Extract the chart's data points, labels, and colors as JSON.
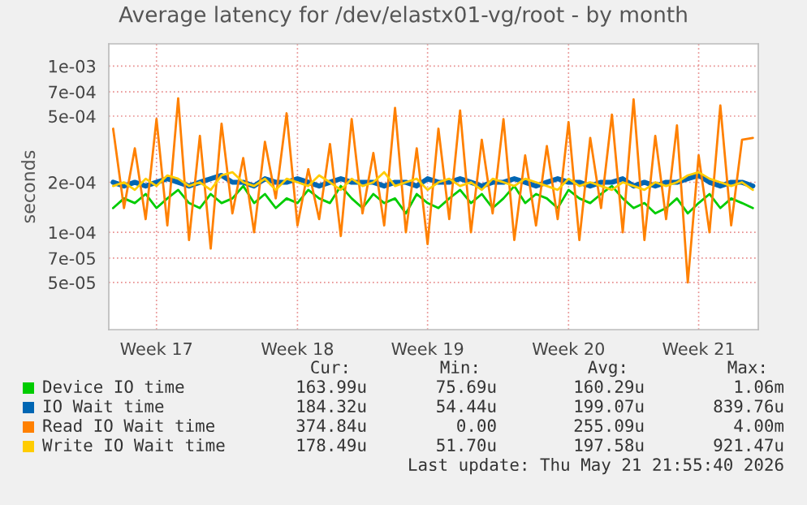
{
  "chart_data": {
    "type": "line",
    "title": "Average latency for /dev/elastx01-vg/root - by month",
    "ylabel": "seconds",
    "log": "y",
    "grid": true,
    "legend": "bottom",
    "ylim": [
      2.6e-05,
      0.00136
    ],
    "yticks": [
      {
        "value": 5e-05,
        "label": "5e-05"
      },
      {
        "value": 7e-05,
        "label": "7e-05"
      },
      {
        "value": 0.0001,
        "label": "1e-04"
      },
      {
        "value": 0.0002,
        "label": "2e-04"
      },
      {
        "value": 0.0005,
        "label": "5e-04"
      },
      {
        "value": 0.0007,
        "label": "7e-04"
      },
      {
        "value": 0.001,
        "label": "1e-03"
      }
    ],
    "categories": [
      null,
      null,
      null,
      null,
      "Week 17",
      null,
      null,
      null,
      null,
      null,
      null,
      null,
      null,
      null,
      null,
      null,
      null,
      "Week 18",
      null,
      null,
      null,
      null,
      null,
      null,
      null,
      null,
      null,
      null,
      null,
      "Week 19",
      null,
      null,
      null,
      null,
      null,
      null,
      null,
      null,
      null,
      null,
      null,
      null,
      "Week 20",
      null,
      null,
      null,
      null,
      null,
      null,
      null,
      null,
      null,
      null,
      null,
      "Week 21",
      null,
      null,
      null,
      null,
      null
    ],
    "series": [
      {
        "name": "Device IO time",
        "color": "#00cc00",
        "values": [
          0.00014,
          0.00016,
          0.00015,
          0.00017,
          0.00014,
          0.00016,
          0.00018,
          0.00015,
          0.00014,
          0.00017,
          0.00015,
          0.00016,
          0.00019,
          0.00015,
          0.00017,
          0.00014,
          0.00016,
          0.00015,
          0.00018,
          0.00016,
          0.00015,
          0.00019,
          0.00016,
          0.00014,
          0.00017,
          0.00015,
          0.00016,
          0.00013,
          0.00017,
          0.00015,
          0.00014,
          0.00016,
          0.00018,
          0.00015,
          0.00017,
          0.00014,
          0.00016,
          0.00019,
          0.00015,
          0.00017,
          0.00016,
          0.00014,
          0.00018,
          0.00016,
          0.00015,
          0.00017,
          0.00019,
          0.00016,
          0.00014,
          0.00015,
          0.00013,
          0.00014,
          0.00016,
          0.00013,
          0.00015,
          0.00017,
          0.00014,
          0.00016,
          0.00015,
          0.00014
        ]
      },
      {
        "name": "IO Wait time",
        "color": "#0066b3",
        "values": [
          0.0002,
          0.00019,
          0.0002,
          0.00019,
          0.0002,
          0.00021,
          0.0002,
          0.00019,
          0.0002,
          0.00021,
          0.00022,
          0.0002,
          0.0002,
          0.00019,
          0.00021,
          0.0002,
          0.0002,
          0.00021,
          0.0002,
          0.00019,
          0.0002,
          0.00021,
          0.0002,
          0.0002,
          0.0002,
          0.00019,
          0.0002,
          0.0002,
          0.00019,
          0.00021,
          0.0002,
          0.0002,
          0.00021,
          0.0002,
          0.00019,
          0.0002,
          0.0002,
          0.00021,
          0.0002,
          0.00019,
          0.0002,
          0.00021,
          0.0002,
          0.0002,
          0.00019,
          0.0002,
          0.0002,
          0.00021,
          0.00019,
          0.0002,
          0.00019,
          0.0002,
          0.0002,
          0.00021,
          0.00022,
          0.0002,
          0.00019,
          0.0002,
          0.0002,
          0.00019
        ]
      },
      {
        "name": "Read IO Wait time",
        "color": "#ff8000",
        "values": [
          0.00042,
          0.00014,
          0.00032,
          0.00012,
          0.00048,
          0.00011,
          0.00064,
          9e-05,
          0.00038,
          8e-05,
          0.00045,
          0.00013,
          0.00028,
          0.0001,
          0.00035,
          0.00016,
          0.00052,
          0.00011,
          0.00024,
          0.00012,
          0.00034,
          9.5e-05,
          0.00048,
          0.00013,
          0.0003,
          0.00011,
          0.00056,
          0.0001,
          0.00032,
          8.5e-05,
          0.00042,
          0.00012,
          0.00054,
          0.0001,
          0.00036,
          0.00013,
          0.00048,
          9e-05,
          0.00029,
          0.00011,
          0.00033,
          0.00012,
          0.00046,
          9e-05,
          0.00037,
          0.00014,
          0.00051,
          0.0001,
          0.00063,
          9e-05,
          0.00038,
          0.00012,
          0.00044,
          5e-05,
          0.00029,
          0.0001,
          0.00058,
          0.00011,
          0.00036,
          0.00037
        ]
      },
      {
        "name": "Write IO Wait time",
        "color": "#ffcc00",
        "values": [
          0.00019,
          0.0002,
          0.00018,
          0.00021,
          0.00019,
          0.00022,
          0.00021,
          0.00019,
          0.0002,
          0.00018,
          0.00022,
          0.00023,
          0.0002,
          0.00019,
          0.00021,
          0.00018,
          0.00021,
          0.0002,
          0.00019,
          0.00022,
          0.0002,
          0.00018,
          0.00021,
          0.00019,
          0.0002,
          0.00023,
          0.00019,
          0.0002,
          0.00021,
          0.00018,
          0.0002,
          0.00021,
          0.00019,
          0.0002,
          0.00018,
          0.00021,
          0.0002,
          0.00019,
          0.00021,
          0.0002,
          0.00019,
          0.00018,
          0.00021,
          0.00019,
          0.0002,
          0.00019,
          0.00018,
          0.0002,
          0.00019,
          0.00018,
          0.0002,
          0.00019,
          0.0002,
          0.00022,
          0.00023,
          0.00021,
          0.0002,
          0.00019,
          0.0002,
          0.00018
        ]
      }
    ],
    "annotations": [
      "Cur:",
      "Min:",
      "Avg:",
      "Max:",
      "163.99u",
      "75.69u",
      "160.29u",
      "1.06m",
      "184.32u",
      "54.44u",
      "199.07u",
      "839.76u",
      "374.84u",
      "0.00",
      "255.09u",
      "4.00m",
      "178.49u",
      "51.70u",
      "197.58u",
      "921.47u",
      "Last update: Thu May 21 21:55:40 2026"
    ]
  }
}
